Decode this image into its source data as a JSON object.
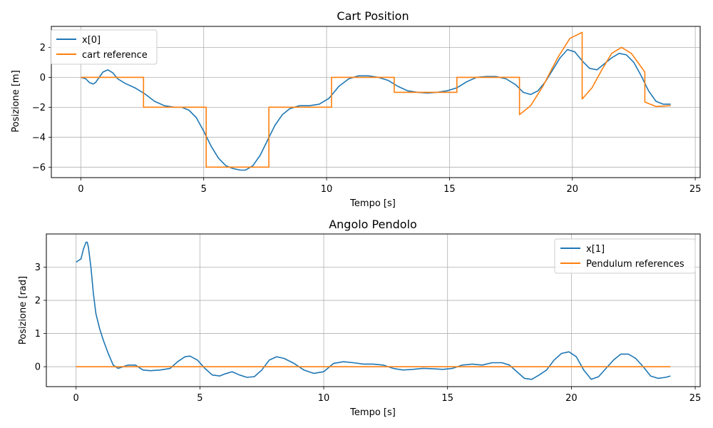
{
  "chart_data": [
    {
      "type": "line",
      "title": "Cart Position",
      "xlabel": "Tempo [s]",
      "ylabel": "Posizione [m]",
      "xlim": [
        -1.2,
        25.2
      ],
      "ylim": [
        -6.7,
        3.4
      ],
      "xticks": [
        0,
        5,
        10,
        15,
        20,
        25
      ],
      "yticks": [
        -6,
        -4,
        -2,
        0,
        2
      ],
      "ytick_labels": [
        "−6",
        "−4",
        "−2",
        "0",
        "2"
      ],
      "grid": true,
      "legend": "top-left",
      "series": [
        {
          "name": "x[0]",
          "color": "#1f77b4",
          "x": [
            0,
            0.2,
            0.35,
            0.5,
            0.6,
            0.75,
            0.9,
            1.1,
            1.3,
            1.5,
            1.8,
            2.2,
            2.6,
            3.0,
            3.4,
            3.8,
            4.1,
            4.4,
            4.7,
            5.0,
            5.3,
            5.6,
            5.9,
            6.2,
            6.5,
            6.7,
            7.0,
            7.3,
            7.6,
            7.9,
            8.2,
            8.5,
            8.9,
            9.3,
            9.7,
            10.1,
            10.5,
            10.9,
            11.3,
            11.7,
            12.1,
            12.5,
            12.9,
            13.3,
            13.7,
            14.1,
            14.5,
            14.9,
            15.3,
            15.7,
            16.1,
            16.5,
            16.9,
            17.3,
            17.7,
            18.0,
            18.3,
            18.6,
            18.9,
            19.2,
            19.5,
            19.8,
            20.1,
            20.4,
            20.7,
            21.0,
            21.3,
            21.6,
            21.9,
            22.2,
            22.5,
            22.8,
            23.1,
            23.4,
            23.7,
            24.0
          ],
          "y": [
            0,
            -0.1,
            -0.35,
            -0.45,
            -0.35,
            0,
            0.35,
            0.5,
            0.3,
            -0.1,
            -0.4,
            -0.7,
            -1.1,
            -1.6,
            -1.9,
            -2.0,
            -2.0,
            -2.2,
            -2.7,
            -3.6,
            -4.6,
            -5.4,
            -5.9,
            -6.1,
            -6.2,
            -6.2,
            -5.9,
            -5.2,
            -4.2,
            -3.2,
            -2.5,
            -2.1,
            -1.9,
            -1.9,
            -1.8,
            -1.4,
            -0.6,
            -0.1,
            0.1,
            0.1,
            0,
            -0.2,
            -0.6,
            -0.9,
            -1.0,
            -1.05,
            -1.0,
            -0.9,
            -0.7,
            -0.3,
            0,
            0.05,
            0.05,
            -0.1,
            -0.5,
            -1.0,
            -1.15,
            -0.9,
            -0.3,
            0.5,
            1.3,
            1.85,
            1.7,
            1.1,
            0.6,
            0.5,
            0.9,
            1.3,
            1.6,
            1.5,
            1.0,
            0.1,
            -0.9,
            -1.6,
            -1.8,
            -1.8
          ]
        },
        {
          "name": "cart reference",
          "color": "#ff7f0e",
          "x": [
            0,
            2.55,
            2.55,
            5.1,
            5.1,
            7.65,
            7.65,
            10.2,
            10.2,
            12.75,
            12.75,
            15.3,
            15.3,
            17.85,
            17.85,
            18.3,
            18.8,
            19.4,
            19.9,
            20.4,
            20.4,
            20.8,
            21.2,
            21.6,
            22.0,
            22.4,
            22.95,
            22.95,
            23.4,
            24.0
          ],
          "y": [
            0,
            0,
            -2,
            -2,
            -6,
            -6,
            -2,
            -2,
            0,
            0,
            -1,
            -1,
            0,
            0,
            -2.5,
            -1.9,
            -0.6,
            1.3,
            2.6,
            3.0,
            -1.45,
            -0.7,
            0.5,
            1.6,
            2.0,
            1.6,
            0.35,
            -1.65,
            -1.95,
            -1.9
          ]
        }
      ]
    },
    {
      "type": "line",
      "title": "Angolo Pendolo",
      "xlabel": "Tempo [s]",
      "ylabel": "Posizione [rad]",
      "xlim": [
        -1.2,
        25.2
      ],
      "ylim": [
        -0.6,
        4.0
      ],
      "xticks": [
        0,
        5,
        10,
        15,
        20,
        25
      ],
      "yticks": [
        0,
        1,
        2,
        3
      ],
      "ytick_labels": [
        "0",
        "1",
        "2",
        "3"
      ],
      "grid": true,
      "legend": "top-right",
      "series": [
        {
          "name": "x[1]",
          "color": "#1f77b4",
          "x": [
            0,
            0.2,
            0.3,
            0.4,
            0.45,
            0.5,
            0.6,
            0.7,
            0.8,
            0.95,
            1.1,
            1.3,
            1.5,
            1.7,
            1.9,
            2.1,
            2.4,
            2.7,
            3.0,
            3.4,
            3.8,
            4.1,
            4.4,
            4.6,
            4.9,
            5.2,
            5.5,
            5.8,
            6.0,
            6.3,
            6.6,
            6.9,
            7.2,
            7.5,
            7.8,
            8.1,
            8.4,
            8.8,
            9.2,
            9.6,
            10.0,
            10.4,
            10.8,
            11.2,
            11.6,
            12.0,
            12.4,
            12.8,
            13.2,
            13.6,
            14.0,
            14.4,
            14.8,
            15.2,
            15.6,
            16.0,
            16.4,
            16.8,
            17.2,
            17.5,
            17.8,
            18.1,
            18.4,
            18.7,
            19.0,
            19.3,
            19.6,
            19.9,
            20.2,
            20.5,
            20.8,
            21.1,
            21.4,
            21.7,
            22.0,
            22.3,
            22.6,
            22.9,
            23.2,
            23.5,
            23.8,
            24.0
          ],
          "y": [
            3.15,
            3.25,
            3.55,
            3.75,
            3.75,
            3.6,
            3.0,
            2.2,
            1.6,
            1.15,
            0.8,
            0.4,
            0.05,
            -0.05,
            0,
            0.05,
            0.05,
            -0.1,
            -0.12,
            -0.1,
            -0.05,
            0.15,
            0.3,
            0.32,
            0.2,
            -0.05,
            -0.25,
            -0.28,
            -0.22,
            -0.15,
            -0.25,
            -0.32,
            -0.3,
            -0.1,
            0.2,
            0.3,
            0.25,
            0.1,
            -0.1,
            -0.2,
            -0.15,
            0.1,
            0.15,
            0.12,
            0.08,
            0.08,
            0.05,
            -0.05,
            -0.1,
            -0.08,
            -0.05,
            -0.06,
            -0.08,
            -0.05,
            0.05,
            0.08,
            0.05,
            0.12,
            0.12,
            0.05,
            -0.15,
            -0.35,
            -0.38,
            -0.25,
            -0.1,
            0.2,
            0.4,
            0.45,
            0.3,
            -0.1,
            -0.38,
            -0.3,
            -0.05,
            0.2,
            0.38,
            0.38,
            0.25,
            0,
            -0.28,
            -0.35,
            -0.32,
            -0.28
          ]
        },
        {
          "name": "Pendulum references",
          "color": "#ff7f0e",
          "x": [
            0,
            24.0
          ],
          "y": [
            0,
            0
          ]
        }
      ]
    }
  ]
}
